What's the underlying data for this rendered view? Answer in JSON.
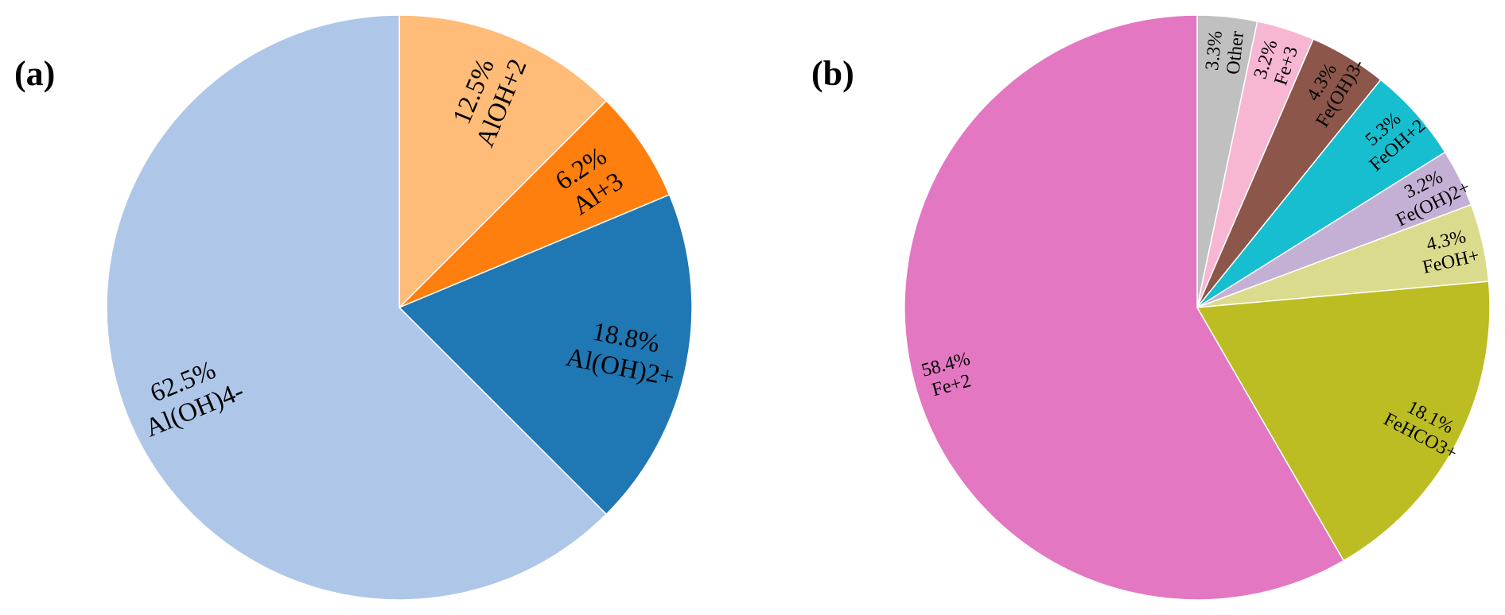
{
  "chart_data": [
    {
      "type": "pie",
      "panel_label": "(a)",
      "start": "12 o'clock",
      "direction": "clockwise",
      "slices": [
        {
          "label": "AlOH+2",
          "value": 12.5,
          "value_text": "12.5%",
          "color": "#ffbb78"
        },
        {
          "label": "Al+3",
          "value": 6.2,
          "value_text": "6.2%",
          "color": "#ff7f0e"
        },
        {
          "label": "Al(OH)2+",
          "value": 18.8,
          "value_text": "18.8%",
          "color": "#1f77b4"
        },
        {
          "label": "Al(OH)4-",
          "value": 62.5,
          "value_text": "62.5%",
          "color": "#aec7e8"
        }
      ]
    },
    {
      "type": "pie",
      "panel_label": "(b)",
      "start": "12 o'clock",
      "direction": "clockwise",
      "slices": [
        {
          "label": "Other",
          "value": 3.3,
          "value_text": "3.3%",
          "color": "#c0c0c0"
        },
        {
          "label": "Fe+3",
          "value": 3.2,
          "value_text": "3.2%",
          "color": "#f7b6d2"
        },
        {
          "label": "Fe(OH)3-",
          "value": 4.3,
          "value_text": "4.3%",
          "color": "#8c564b"
        },
        {
          "label": "FeOH+2",
          "value": 5.3,
          "value_text": "5.3%",
          "color": "#17becf"
        },
        {
          "label": "Fe(OH)2+",
          "value": 3.2,
          "value_text": "3.2%",
          "color": "#c5b0d5"
        },
        {
          "label": "FeOH+",
          "value": 4.3,
          "value_text": "4.3%",
          "color": "#dbdb8d"
        },
        {
          "label": "FeHCO3+",
          "value": 18.1,
          "value_text": "18.1%",
          "color": "#bcbd22"
        },
        {
          "label": "Fe+2",
          "value": 58.4,
          "value_text": "58.4%",
          "color": "#e377c2"
        }
      ]
    }
  ]
}
